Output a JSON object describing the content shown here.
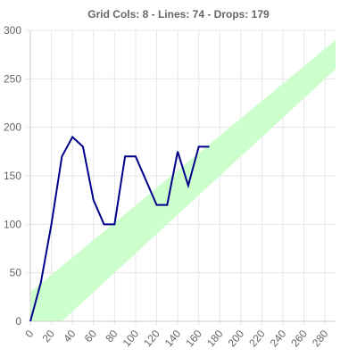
{
  "chart_data": {
    "type": "line",
    "title": "Grid Cols: 8 - Lines: 74 - Drops: 179",
    "xlim": [
      0,
      290
    ],
    "ylim": [
      0,
      300
    ],
    "x_ticks": [
      0,
      20,
      40,
      60,
      80,
      100,
      120,
      140,
      160,
      180,
      200,
      220,
      240,
      260,
      280
    ],
    "x_tick_labels": [
      "0",
      "20",
      "40",
      "60",
      "80",
      "100",
      "120",
      "140",
      "160",
      "180",
      "200",
      "220",
      "240",
      "260",
      "280"
    ],
    "y_ticks": [
      0,
      50,
      100,
      150,
      200,
      250,
      300
    ],
    "y_tick_labels": [
      "0",
      "50",
      "100",
      "150",
      "200",
      "250",
      "300"
    ],
    "grid": true,
    "series": [
      {
        "type": "line",
        "color": "#00008b",
        "x": [
          0,
          10,
          20,
          30,
          40,
          50,
          60,
          70,
          80,
          90,
          100,
          110,
          120,
          130,
          140,
          150,
          160,
          170
        ],
        "y": [
          0,
          40,
          100,
          170,
          190,
          180,
          125,
          100,
          100,
          170,
          170,
          145,
          120,
          120,
          175,
          140,
          180,
          180
        ]
      },
      {
        "type": "band",
        "color": "#ccffcc",
        "x": [
          0,
          290
        ],
        "lower": [
          -30,
          260
        ],
        "upper": [
          30,
          290
        ]
      }
    ]
  }
}
